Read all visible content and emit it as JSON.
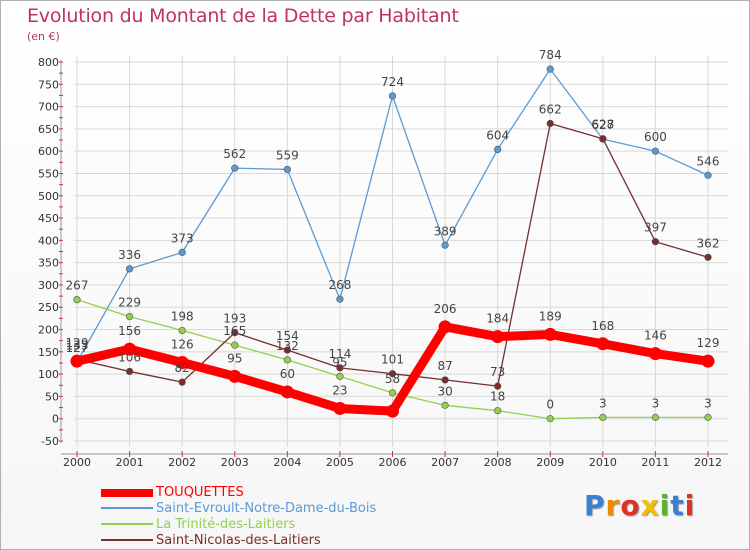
{
  "header": {
    "title": "Evolution du Montant de la Dette par Habitant",
    "unit": "(en €)"
  },
  "logo": {
    "text": "Proxiti"
  },
  "colors": {
    "title": "#c0306a",
    "grid": "#d8d8d8",
    "axis_text": "#333333"
  },
  "chart_data": {
    "type": "line",
    "title": "Evolution du Montant de la Dette par Habitant",
    "ylabel": "(en €)",
    "xlabel": "",
    "x": [
      "2000",
      "2001",
      "2002",
      "2003",
      "2004",
      "2005",
      "2006",
      "2007",
      "2008",
      "2009",
      "2010",
      "2011",
      "2012"
    ],
    "ylim": [
      -50,
      800
    ],
    "ytick_step": 50,
    "grid": true,
    "legend_position": "bottom-left",
    "series": [
      {
        "name": "TOUQUETTES",
        "color": "#ff0000",
        "values": [
          129,
          156,
          126,
          95,
          60,
          23,
          17,
          206,
          184,
          189,
          168,
          146,
          129
        ],
        "labels": [
          "129",
          "156",
          "126",
          "95",
          "60",
          "23",
          "",
          "206",
          "184",
          "189",
          "168",
          "146",
          "129"
        ]
      },
      {
        "name": "Saint-Evroult-Notre-Dame-du-Bois",
        "color": "#5a9bd5",
        "values": [
          127,
          336,
          373,
          562,
          559,
          268,
          724,
          389,
          604,
          784,
          627,
          600,
          546
        ],
        "labels": [
          "127",
          "336",
          "373",
          "562",
          "559",
          "268",
          "724",
          "389",
          "604",
          "784",
          "627",
          "600",
          "546"
        ]
      },
      {
        "name": "La Trinité-des-Laitiers",
        "color": "#92d050",
        "values": [
          267,
          229,
          198,
          165,
          132,
          95,
          58,
          30,
          18,
          0,
          3,
          3,
          3
        ],
        "labels": [
          "267",
          "229",
          "198",
          "165",
          "132",
          "95",
          "58",
          "30",
          "18",
          "0",
          "3",
          "3",
          "3"
        ]
      },
      {
        "name": "Saint-Nicolas-des-Laitiers",
        "color": "#7b2c2c",
        "values": [
          133,
          106,
          82,
          193,
          154,
          114,
          101,
          87,
          73,
          662,
          628,
          397,
          362
        ],
        "labels": [
          "133",
          "106",
          "82",
          "193",
          "154",
          "114",
          "101",
          "87",
          "73",
          "662",
          "628",
          "397",
          "362"
        ]
      }
    ]
  }
}
